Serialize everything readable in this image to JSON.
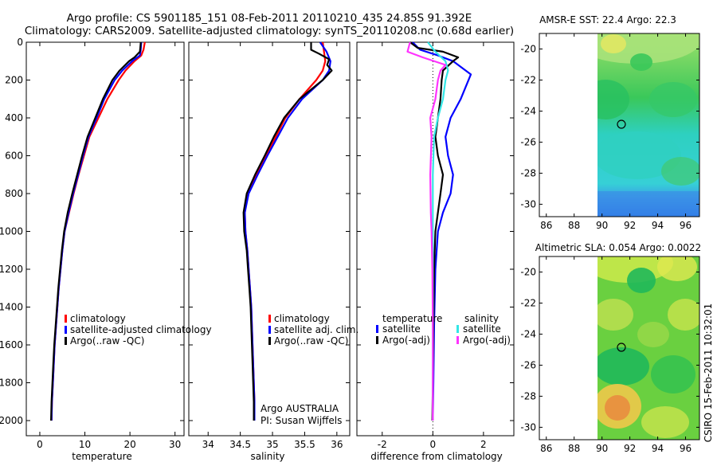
{
  "header": {
    "title_line1": "Argo profile: CS 5901185_151 08-Feb-2011 20110210_435 24.85S 91.392E",
    "title_line2": "Climatology: CARS2009. Satellite-adjusted climatology: synTS_20110208.nc (0.68d earlier)"
  },
  "stamp": "CSIRO 15-Feb-2011 10:32:01",
  "colors": {
    "climatology": "#ff0000",
    "satellite": "#0000ff",
    "argo": "#000000",
    "argo_sal": "#ff33ff",
    "sat_sal": "#33e6e6"
  },
  "chart_data": [
    {
      "type": "line",
      "id": "temperature",
      "title": "",
      "xlabel": "temperature",
      "ylabel": "",
      "xlim": [
        -3,
        32
      ],
      "ylim": [
        2080,
        0
      ],
      "xticks": [
        0,
        10,
        20,
        30
      ],
      "yticks": [
        0,
        200,
        400,
        600,
        800,
        1000,
        1200,
        1400,
        1600,
        1800,
        2000
      ],
      "legend": [
        "climatology",
        "satellite-adjusted climatology",
        "Argo(..raw -QC)"
      ],
      "series": [
        {
          "name": "climatology",
          "color": "#ff0000",
          "points": [
            [
              23.3,
              0
            ],
            [
              23,
              40
            ],
            [
              22.5,
              70
            ],
            [
              21,
              100
            ],
            [
              19,
              150
            ],
            [
              17.5,
              200
            ],
            [
              15,
              300
            ],
            [
              13,
              400
            ],
            [
              11,
              500
            ],
            [
              9.8,
              600
            ],
            [
              8.6,
              700
            ],
            [
              7.5,
              800
            ],
            [
              6.5,
              900
            ],
            [
              5.5,
              1000
            ],
            [
              5,
              1100
            ],
            [
              4.6,
              1200
            ],
            [
              4.2,
              1300
            ],
            [
              3.9,
              1400
            ],
            [
              3.6,
              1500
            ],
            [
              3.3,
              1600
            ],
            [
              3.1,
              1700
            ],
            [
              2.9,
              1800
            ],
            [
              2.7,
              1900
            ],
            [
              2.6,
              2000
            ]
          ]
        },
        {
          "name": "satellite-adjusted climatology",
          "color": "#0000ff",
          "points": [
            [
              22.5,
              0
            ],
            [
              22.4,
              40
            ],
            [
              22.2,
              70
            ],
            [
              20.5,
              100
            ],
            [
              18.3,
              150
            ],
            [
              16.6,
              200
            ],
            [
              14.3,
              300
            ],
            [
              12.6,
              400
            ],
            [
              10.8,
              500
            ],
            [
              9.6,
              600
            ],
            [
              8.5,
              700
            ],
            [
              7.4,
              800
            ],
            [
              6.4,
              900
            ],
            [
              5.5,
              1000
            ],
            [
              5,
              1100
            ],
            [
              4.6,
              1200
            ],
            [
              4.2,
              1300
            ],
            [
              3.9,
              1400
            ],
            [
              3.6,
              1500
            ],
            [
              3.3,
              1600
            ],
            [
              3.1,
              1700
            ],
            [
              2.9,
              1800
            ],
            [
              2.7,
              1900
            ],
            [
              2.6,
              2000
            ]
          ]
        },
        {
          "name": "Argo(..raw -QC)",
          "color": "#000000",
          "points": [
            [
              22.4,
              0
            ],
            [
              22.3,
              30
            ],
            [
              22.2,
              50
            ],
            [
              21,
              80
            ],
            [
              19.8,
              100
            ],
            [
              17.7,
              150
            ],
            [
              16.1,
              200
            ],
            [
              14,
              300
            ],
            [
              12.3,
              400
            ],
            [
              10.6,
              500
            ],
            [
              9.4,
              600
            ],
            [
              8.3,
              700
            ],
            [
              7.2,
              800
            ],
            [
              6.2,
              900
            ],
            [
              5.4,
              1000
            ],
            [
              4.9,
              1100
            ],
            [
              4.5,
              1200
            ],
            [
              4.1,
              1300
            ],
            [
              3.8,
              1400
            ],
            [
              3.5,
              1500
            ],
            [
              3.2,
              1600
            ],
            [
              3,
              1700
            ],
            [
              2.8,
              1800
            ],
            [
              2.6,
              1900
            ],
            [
              2.5,
              2000
            ]
          ]
        }
      ]
    },
    {
      "type": "line",
      "id": "salinity",
      "title": "",
      "xlabel": "salinity",
      "ylabel": "",
      "xlim": [
        33.7,
        36.2
      ],
      "ylim": [
        2080,
        0
      ],
      "xticks": [
        34,
        34.5,
        35,
        35.5,
        36
      ],
      "xticklabels": [
        "34",
        "34.5",
        "35",
        "35.5",
        "36"
      ],
      "yticks": [
        0,
        200,
        400,
        600,
        800,
        1000,
        1200,
        1400,
        1600,
        1800,
        2000
      ],
      "legend": [
        "climatology",
        "satellite adj. clim.",
        "Argo(..raw -QC)"
      ],
      "annotations": [
        "Argo AUSTRALIA",
        "PI: Susan Wijffels"
      ],
      "series": [
        {
          "name": "climatology",
          "color": "#ff0000",
          "points": [
            [
              35.78,
              0
            ],
            [
              35.8,
              50
            ],
            [
              35.82,
              100
            ],
            [
              35.78,
              150
            ],
            [
              35.68,
              200
            ],
            [
              35.55,
              250
            ],
            [
              35.42,
              300
            ],
            [
              35.2,
              400
            ],
            [
              35.05,
              500
            ],
            [
              34.9,
              600
            ],
            [
              34.75,
              700
            ],
            [
              34.62,
              800
            ],
            [
              34.57,
              900
            ],
            [
              34.58,
              1000
            ],
            [
              34.61,
              1100
            ],
            [
              34.63,
              1200
            ],
            [
              34.65,
              1300
            ],
            [
              34.67,
              1400
            ],
            [
              34.68,
              1500
            ],
            [
              34.69,
              1600
            ],
            [
              34.7,
              1700
            ],
            [
              34.71,
              1800
            ],
            [
              34.72,
              1900
            ],
            [
              34.72,
              2000
            ]
          ]
        },
        {
          "name": "satellite adj. clim.",
          "color": "#0000ff",
          "points": [
            [
              35.74,
              0
            ],
            [
              35.84,
              50
            ],
            [
              35.9,
              100
            ],
            [
              35.88,
              150
            ],
            [
              35.78,
              200
            ],
            [
              35.62,
              250
            ],
            [
              35.46,
              300
            ],
            [
              35.24,
              400
            ],
            [
              35.08,
              500
            ],
            [
              34.92,
              600
            ],
            [
              34.77,
              700
            ],
            [
              34.63,
              800
            ],
            [
              34.57,
              900
            ],
            [
              34.58,
              1000
            ],
            [
              34.61,
              1100
            ],
            [
              34.63,
              1200
            ],
            [
              34.65,
              1300
            ],
            [
              34.67,
              1400
            ],
            [
              34.68,
              1500
            ],
            [
              34.69,
              1600
            ],
            [
              34.7,
              1700
            ],
            [
              34.71,
              1800
            ],
            [
              34.72,
              1900
            ],
            [
              34.72,
              2000
            ]
          ]
        },
        {
          "name": "Argo(..raw -QC)",
          "color": "#000000",
          "points": [
            [
              35.6,
              0
            ],
            [
              35.6,
              40
            ],
            [
              35.72,
              60
            ],
            [
              35.88,
              90
            ],
            [
              35.85,
              120
            ],
            [
              35.92,
              150
            ],
            [
              35.78,
              200
            ],
            [
              35.6,
              250
            ],
            [
              35.42,
              300
            ],
            [
              35.18,
              400
            ],
            [
              35.02,
              500
            ],
            [
              34.88,
              600
            ],
            [
              34.73,
              700
            ],
            [
              34.6,
              800
            ],
            [
              34.55,
              900
            ],
            [
              34.56,
              1000
            ],
            [
              34.6,
              1100
            ],
            [
              34.62,
              1200
            ],
            [
              34.64,
              1300
            ],
            [
              34.66,
              1400
            ],
            [
              34.67,
              1500
            ],
            [
              34.68,
              1600
            ],
            [
              34.69,
              1700
            ],
            [
              34.7,
              1800
            ],
            [
              34.71,
              1900
            ],
            [
              34.71,
              2000
            ]
          ]
        }
      ]
    },
    {
      "type": "line",
      "id": "difference",
      "title": "",
      "xlabel": "difference from climatology",
      "ylabel": "",
      "xlim": [
        -3,
        3.2
      ],
      "ylim": [
        2080,
        0
      ],
      "xticks": [
        -2,
        0,
        2
      ],
      "yticks": [
        0,
        200,
        400,
        600,
        800,
        1000,
        1200,
        1400,
        1600,
        1800,
        2000
      ],
      "legend_groups": [
        "temperature",
        "salinity"
      ],
      "legend": [
        "satellite",
        "Argo(-adj)",
        "satellite",
        "Argo(-adj)"
      ],
      "series": [
        {
          "name": "temperature satellite",
          "color": "#0000ff",
          "points": [
            [
              -0.8,
              0
            ],
            [
              -0.5,
              40
            ],
            [
              0.2,
              70
            ],
            [
              0.8,
              100
            ],
            [
              1.5,
              170
            ],
            [
              1.1,
              300
            ],
            [
              0.7,
              400
            ],
            [
              0.5,
              500
            ],
            [
              0.6,
              600
            ],
            [
              0.8,
              700
            ],
            [
              0.7,
              800
            ],
            [
              0.4,
              900
            ],
            [
              0.2,
              1000
            ],
            [
              0.1,
              1200
            ],
            [
              0.05,
              1500
            ],
            [
              0.02,
              1800
            ],
            [
              0,
              2000
            ]
          ]
        },
        {
          "name": "temperature Argo(-adj)",
          "color": "#000000",
          "points": [
            [
              -0.9,
              0
            ],
            [
              -0.6,
              30
            ],
            [
              0.4,
              50
            ],
            [
              1,
              80
            ],
            [
              0.8,
              100
            ],
            [
              0.4,
              150
            ],
            [
              0.35,
              200
            ],
            [
              0.3,
              300
            ],
            [
              0.2,
              400
            ],
            [
              0.1,
              500
            ],
            [
              0.2,
              600
            ],
            [
              0.4,
              700
            ],
            [
              0.3,
              800
            ],
            [
              0.2,
              900
            ],
            [
              0.1,
              1000
            ],
            [
              0.05,
              1200
            ],
            [
              0.02,
              1500
            ],
            [
              0,
              1800
            ],
            [
              -0.02,
              2000
            ]
          ]
        },
        {
          "name": "salinity satellite",
          "color": "#33e6e6",
          "points": [
            [
              -0.2,
              0
            ],
            [
              0.1,
              50
            ],
            [
              0.5,
              100
            ],
            [
              0.6,
              150
            ],
            [
              0.5,
              200
            ],
            [
              0.4,
              300
            ],
            [
              0.2,
              400
            ],
            [
              0.05,
              500
            ],
            [
              0,
              700
            ],
            [
              0,
              1000
            ],
            [
              0,
              1400
            ],
            [
              0,
              1800
            ],
            [
              0,
              2000
            ]
          ]
        },
        {
          "name": "salinity Argo(-adj)",
          "color": "#ff33ff",
          "points": [
            [
              -0.9,
              0
            ],
            [
              -1,
              50
            ],
            [
              -0.4,
              80
            ],
            [
              0.5,
              120
            ],
            [
              0.3,
              150
            ],
            [
              0.2,
              200
            ],
            [
              0.1,
              300
            ],
            [
              -0.1,
              400
            ],
            [
              -0.05,
              500
            ],
            [
              -0.1,
              700
            ],
            [
              -0.08,
              900
            ],
            [
              -0.05,
              1000
            ],
            [
              -0.02,
              1200
            ],
            [
              0,
              1500
            ],
            [
              0,
              2000
            ]
          ]
        }
      ]
    },
    {
      "type": "heatmap",
      "id": "sst_map",
      "title": "AMSR-E SST: 22.4 Argo: 22.3",
      "xlim": [
        85.5,
        97
      ],
      "ylim": [
        -30.8,
        -19
      ],
      "xticks": [
        86,
        88,
        90,
        92,
        94,
        96
      ],
      "yticks": [
        -20,
        -22,
        -24,
        -26,
        -28,
        -30
      ],
      "data_x_start": 90,
      "argo_position": [
        91.392,
        -24.85
      ]
    },
    {
      "type": "heatmap",
      "id": "sla_map",
      "title": "Altimetric SLA: 0.054 Argo: 0.0022",
      "xlim": [
        85.5,
        97
      ],
      "ylim": [
        -30.8,
        -19
      ],
      "xticks": [
        86,
        88,
        90,
        92,
        94,
        96
      ],
      "yticks": [
        -20,
        -22,
        -24,
        -26,
        -28,
        -30
      ],
      "data_x_start": 90,
      "argo_position": [
        91.392,
        -24.85
      ]
    }
  ]
}
